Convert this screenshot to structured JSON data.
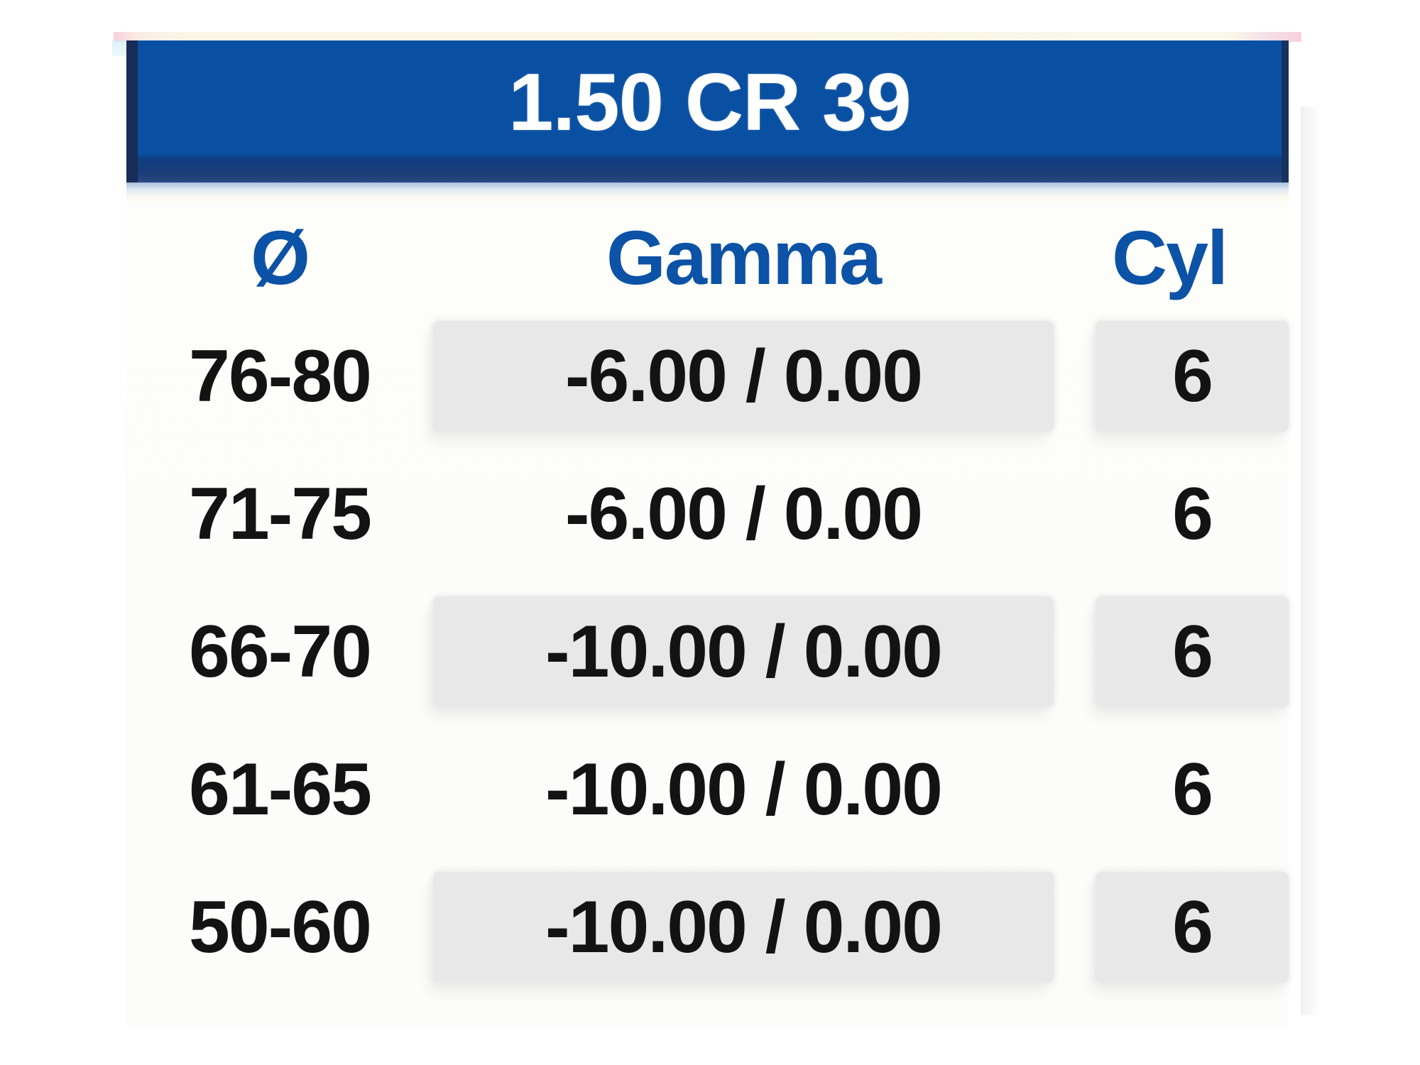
{
  "document": {
    "title": "1.50 CR 39"
  },
  "table": {
    "columns": [
      {
        "key": "diameter",
        "label": "Ø"
      },
      {
        "key": "gamma",
        "label": "Gamma"
      },
      {
        "key": "cyl",
        "label": "Cyl"
      }
    ],
    "rows": [
      {
        "diameter": "76-80",
        "gamma": "-6.00 / 0.00",
        "cyl": "6"
      },
      {
        "diameter": "71-75",
        "gamma": "-6.00 / 0.00",
        "cyl": "6"
      },
      {
        "diameter": "66-70",
        "gamma": "-10.00 / 0.00",
        "cyl": "6"
      },
      {
        "diameter": "61-65",
        "gamma": "-10.00 / 0.00",
        "cyl": "6"
      },
      {
        "diameter": "50-60",
        "gamma": "-10.00 / 0.00",
        "cyl": "6"
      }
    ]
  },
  "colors": {
    "banner_blue": "#0A50A2",
    "banner_edge_dark": "#1A2C58",
    "header_text_blue": "#0C52A6",
    "row_shade_gray": "#E8E8E8",
    "body_text": "#131313",
    "title_text": "#FFFFFF"
  }
}
